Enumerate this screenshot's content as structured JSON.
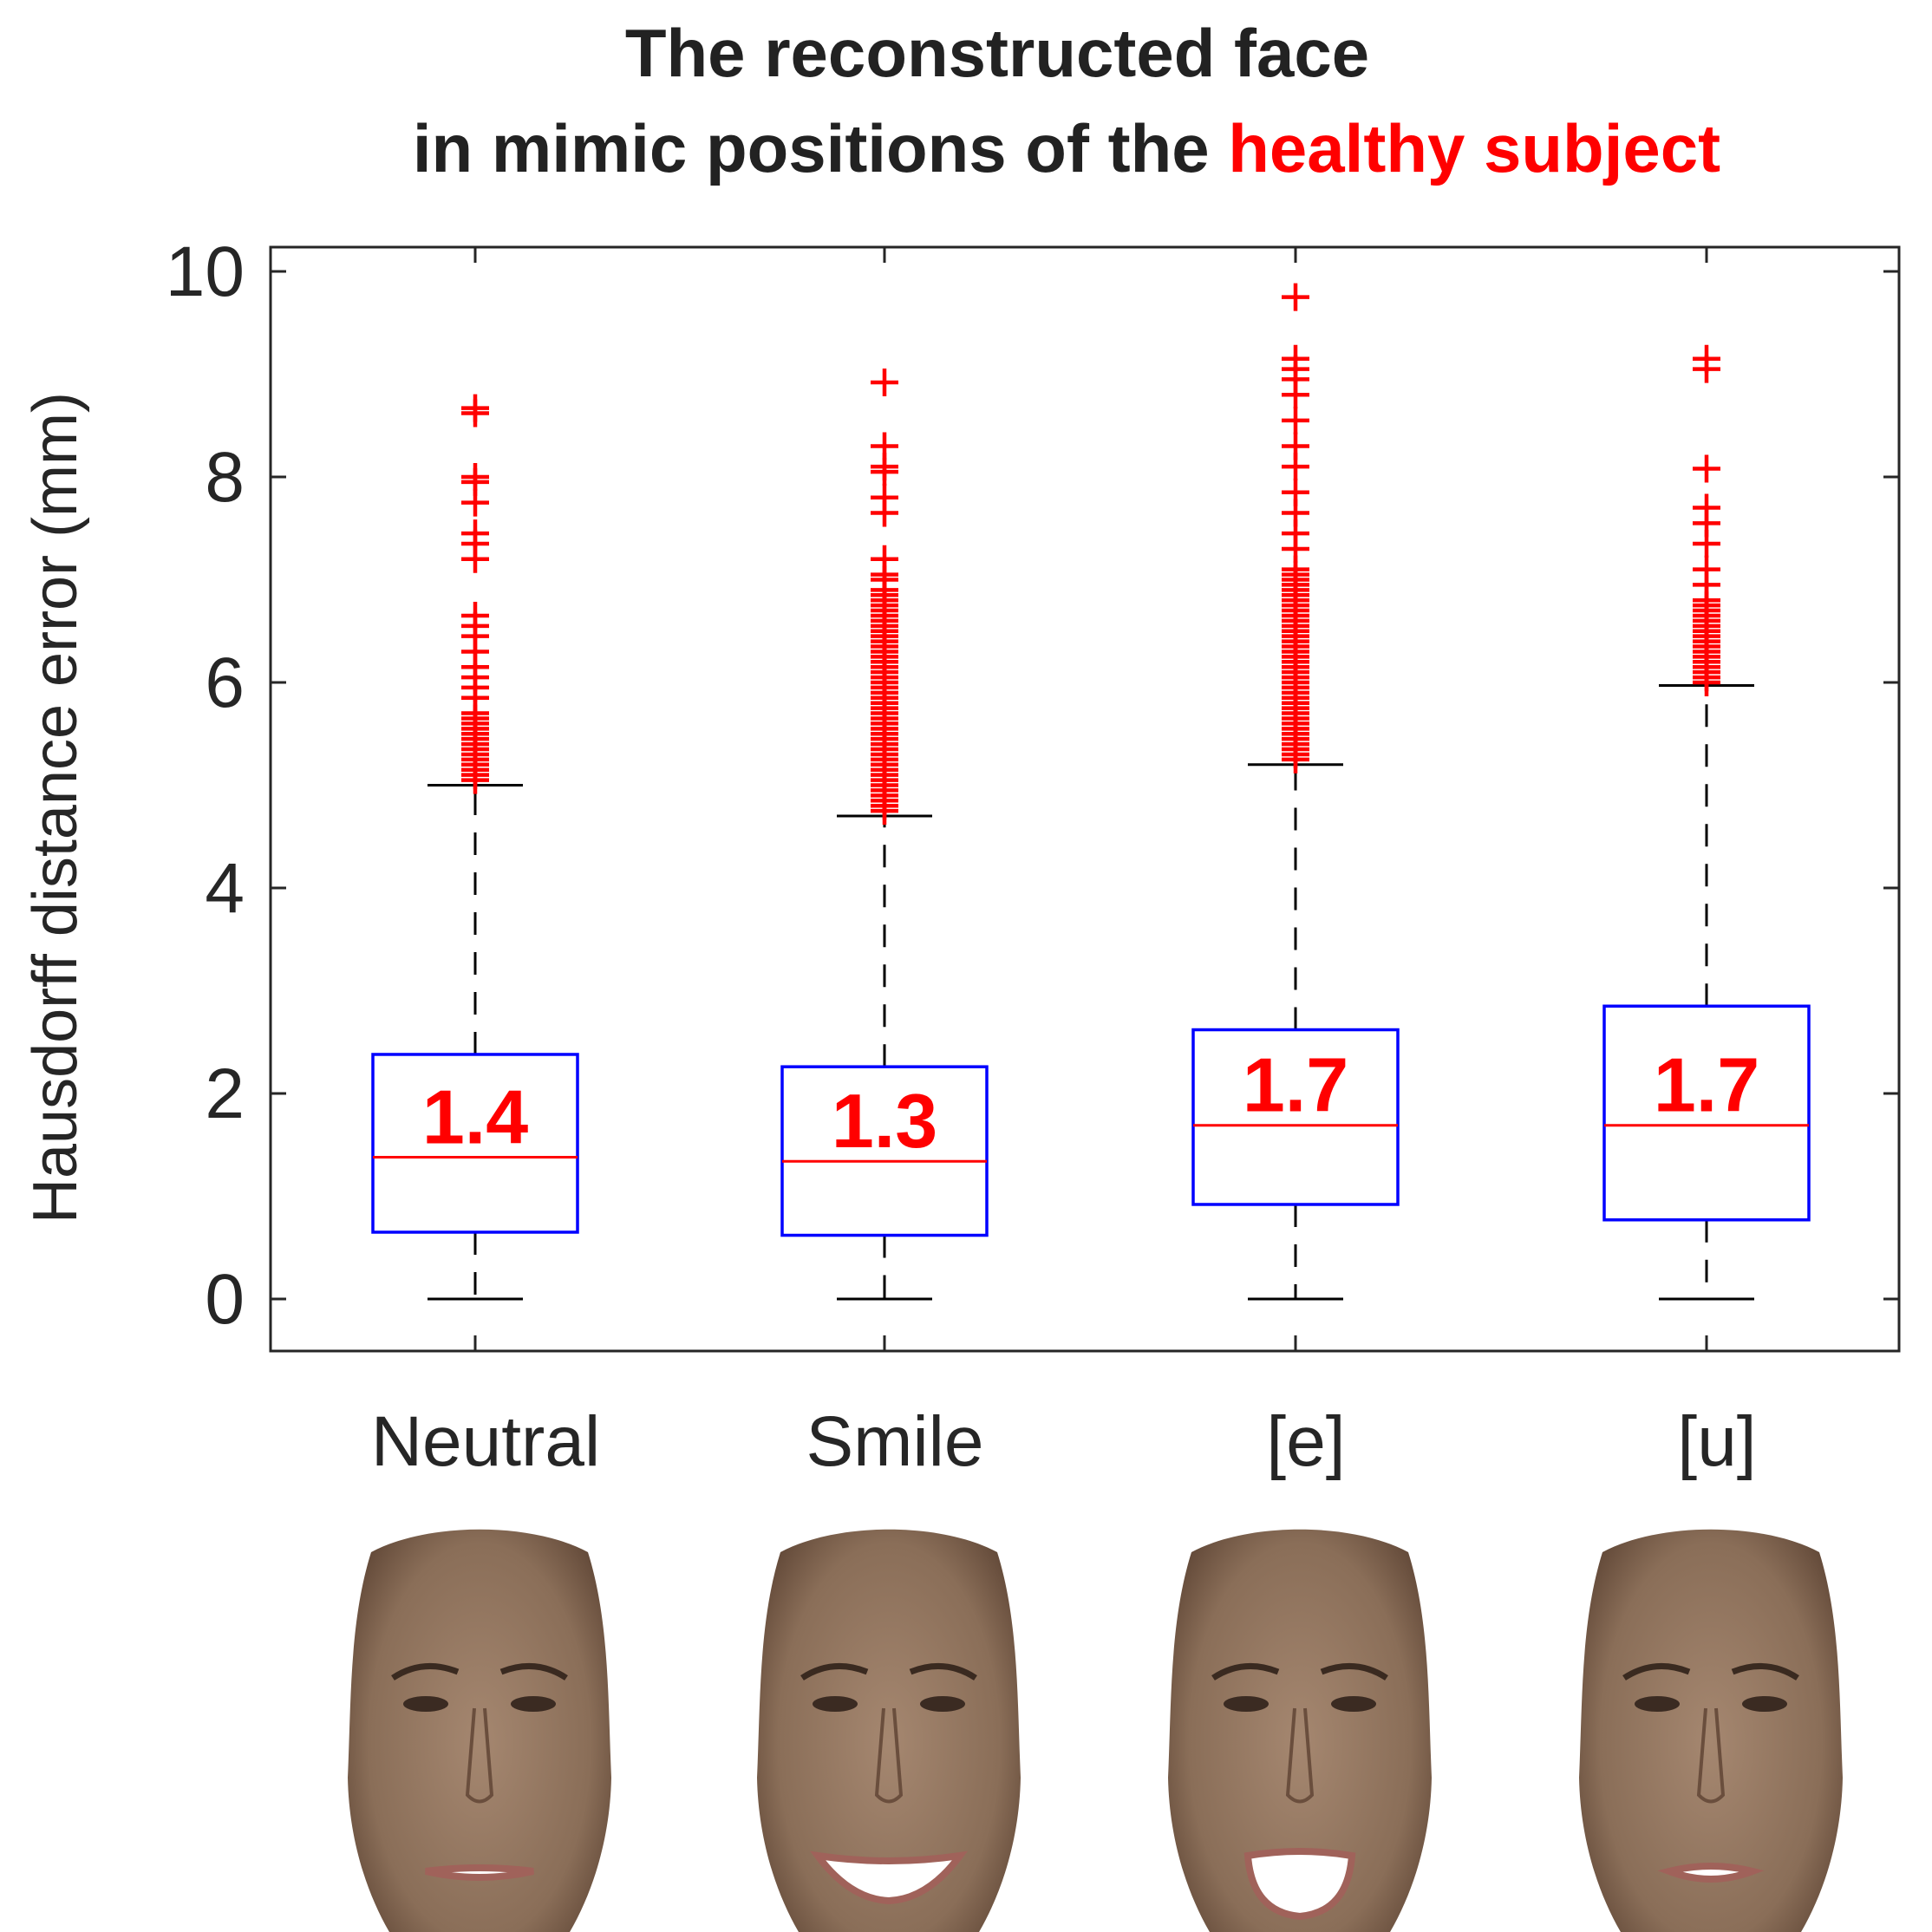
{
  "chart_data": {
    "type": "box",
    "title_line1": "The reconstructed face",
    "title_line2_prefix": "in mimic positions of the",
    "title_line2_highlight": "healthy subject",
    "ylabel": "Hausdorff distance error (mm)",
    "xlabel": "",
    "ylim": [
      -0.5,
      10.25
    ],
    "yticks": [
      0,
      2,
      4,
      6,
      8,
      10
    ],
    "categories": [
      "Neutral",
      "Smile",
      "[e]",
      "[u]"
    ],
    "boxes": [
      {
        "name": "Neutral",
        "whisker_low": 0,
        "q1": 0.65,
        "median": 1.38,
        "q3": 2.38,
        "whisker_high": 5.0,
        "median_label": "1.4",
        "outliers": [
          5.05,
          5.1,
          5.15,
          5.2,
          5.25,
          5.3,
          5.35,
          5.4,
          5.45,
          5.5,
          5.55,
          5.6,
          5.65,
          5.7,
          5.85,
          5.95,
          6.05,
          6.15,
          6.3,
          6.45,
          6.55,
          6.65,
          7.2,
          7.35,
          7.45,
          7.75,
          7.95,
          8.0,
          8.62,
          8.67
        ]
      },
      {
        "name": "Smile",
        "whisker_low": 0,
        "q1": 0.62,
        "median": 1.34,
        "q3": 2.26,
        "whisker_high": 4.7,
        "median_label": "1.3",
        "outliers": [
          4.75,
          4.8,
          4.85,
          4.9,
          4.95,
          5.0,
          5.05,
          5.1,
          5.15,
          5.2,
          5.25,
          5.3,
          5.35,
          5.4,
          5.45,
          5.5,
          5.55,
          5.6,
          5.65,
          5.7,
          5.75,
          5.8,
          5.85,
          5.9,
          5.95,
          6.0,
          6.05,
          6.1,
          6.15,
          6.2,
          6.25,
          6.3,
          6.35,
          6.4,
          6.45,
          6.5,
          6.55,
          6.6,
          6.65,
          6.7,
          6.75,
          6.8,
          6.85,
          6.9,
          7.0,
          7.05,
          7.2,
          7.65,
          7.8,
          8.05,
          8.1,
          8.3,
          8.92
        ]
      },
      {
        "name": "[e]",
        "whisker_low": 0,
        "q1": 0.92,
        "median": 1.69,
        "q3": 2.62,
        "whisker_high": 5.2,
        "median_label": "1.7",
        "outliers": [
          5.25,
          5.3,
          5.35,
          5.4,
          5.45,
          5.5,
          5.55,
          5.6,
          5.65,
          5.7,
          5.75,
          5.8,
          5.85,
          5.9,
          5.95,
          6.0,
          6.05,
          6.1,
          6.15,
          6.2,
          6.25,
          6.3,
          6.35,
          6.4,
          6.45,
          6.5,
          6.55,
          6.6,
          6.65,
          6.7,
          6.75,
          6.8,
          6.85,
          6.9,
          6.95,
          7.0,
          7.05,
          7.1,
          7.3,
          7.45,
          7.65,
          7.85,
          8.1,
          8.3,
          8.55,
          8.8,
          8.95,
          9.05,
          9.15,
          9.75
        ]
      },
      {
        "name": "[u]",
        "whisker_low": 0,
        "q1": 0.77,
        "median": 1.69,
        "q3": 2.85,
        "whisker_high": 5.97,
        "median_label": "1.7",
        "outliers": [
          6.0,
          6.05,
          6.1,
          6.15,
          6.2,
          6.25,
          6.3,
          6.35,
          6.4,
          6.45,
          6.5,
          6.55,
          6.6,
          6.65,
          6.7,
          6.75,
          6.8,
          6.95,
          7.1,
          7.35,
          7.55,
          7.7,
          8.08,
          9.05,
          9.15
        ]
      }
    ]
  },
  "faces": [
    {
      "name": "Neutral",
      "mouth": "closed"
    },
    {
      "name": "Smile",
      "mouth": "smile"
    },
    {
      "name": "[e]",
      "mouth": "open"
    },
    {
      "name": "[u]",
      "mouth": "small"
    }
  ],
  "colors": {
    "box": "#0000ff",
    "median": "#ff0000",
    "outlier": "#ff0000",
    "whisker": "#000000",
    "axes": "#262626",
    "skin": "#8a6e58",
    "skin_dark": "#5e4535"
  }
}
